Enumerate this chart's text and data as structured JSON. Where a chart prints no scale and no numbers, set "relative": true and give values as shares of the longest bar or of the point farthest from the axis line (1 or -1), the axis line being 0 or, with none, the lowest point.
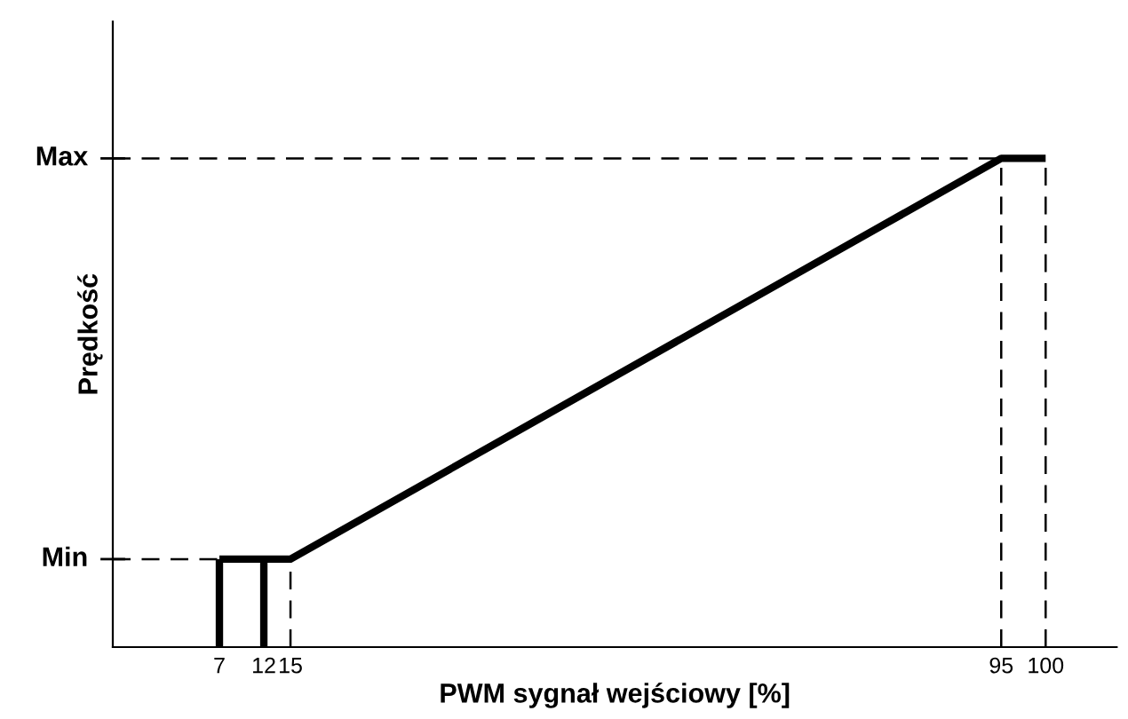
{
  "chart_data": {
    "type": "line",
    "relative": true,
    "xlabel": "PWM sygnał wejściowy [%]",
    "ylabel": "Prędkość",
    "xlim": [
      -5,
      108
    ],
    "xticks": [
      7,
      12,
      15,
      95,
      100
    ],
    "annotations": [
      {
        "text": "Min",
        "x": -5,
        "y": 0.18
      },
      {
        "text": "Max",
        "x": -5,
        "y": 1
      }
    ],
    "grid": false,
    "legend": false,
    "marker": "none",
    "series": [
      {
        "color": "#000000",
        "line_style": "solid",
        "x": [
          7,
          15,
          95,
          100
        ],
        "values": [
          0.18,
          0.18,
          1,
          1
        ]
      },
      {
        "color": "#000000",
        "line_style": "solid",
        "x": [
          7,
          7
        ],
        "values": [
          0,
          0.18
        ]
      },
      {
        "color": "#000000",
        "line_style": "solid",
        "x": [
          12,
          12
        ],
        "values": [
          0,
          0.18
        ]
      },
      {
        "color": "#000000",
        "line_style": "dashed",
        "x": [
          -5,
          7
        ],
        "values": [
          0.18,
          0.18
        ]
      },
      {
        "color": "#000000",
        "line_style": "dashed",
        "x": [
          -5,
          95
        ],
        "values": [
          1,
          1
        ]
      },
      {
        "color": "#000000",
        "line_style": "dashed",
        "x": [
          15,
          15
        ],
        "values": [
          0,
          0.18
        ]
      },
      {
        "color": "#000000",
        "line_style": "dashed",
        "x": [
          95,
          95
        ],
        "values": [
          0,
          1
        ]
      },
      {
        "color": "#000000",
        "line_style": "dashed",
        "x": [
          100,
          100
        ],
        "values": [
          0,
          1
        ]
      }
    ]
  }
}
